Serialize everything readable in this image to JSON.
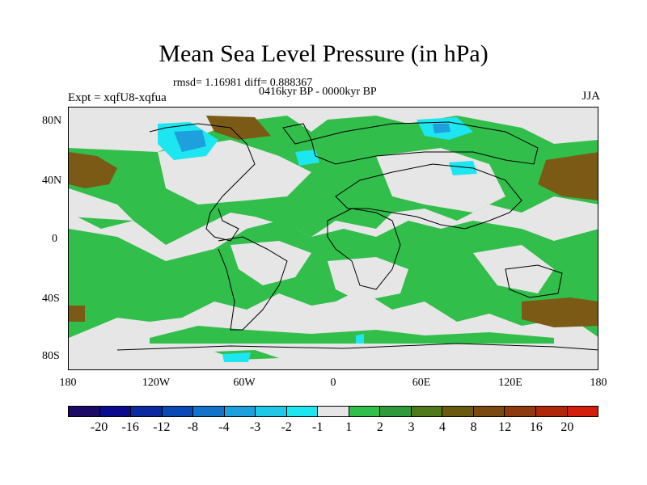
{
  "title": "Mean Sea Level Pressure (in hPa)",
  "stats_line": "rmsd= 1.16981 diff= 0.888367",
  "period_line": "0416kyr BP - 0000kyr BP",
  "experiment": "Expt = xqfU8-xqfua",
  "season": "JJA",
  "lat_labels": [
    "80N",
    "40N",
    "0",
    "40S",
    "80S"
  ],
  "lon_labels": [
    "180",
    "120W",
    "60W",
    "0",
    "60E",
    "120E",
    "180"
  ],
  "colorbar": {
    "colors": [
      "#1a0a66",
      "#0a0a8c",
      "#0b2aa0",
      "#0a4ab4",
      "#1273c8",
      "#1ea0dc",
      "#1ec8e6",
      "#1ee6f0",
      "#e6e6e6",
      "#32be4b",
      "#2f9a3a",
      "#4f7a1a",
      "#6a5a10",
      "#7a4a12",
      "#8c3a0e",
      "#b0280a",
      "#d21e0a"
    ],
    "labels": [
      "-20",
      "-16",
      "-12",
      "-8",
      "-4",
      "-3",
      "-2",
      "-1",
      "1",
      "2",
      "3",
      "4",
      "8",
      "12",
      "16",
      "20"
    ]
  }
}
